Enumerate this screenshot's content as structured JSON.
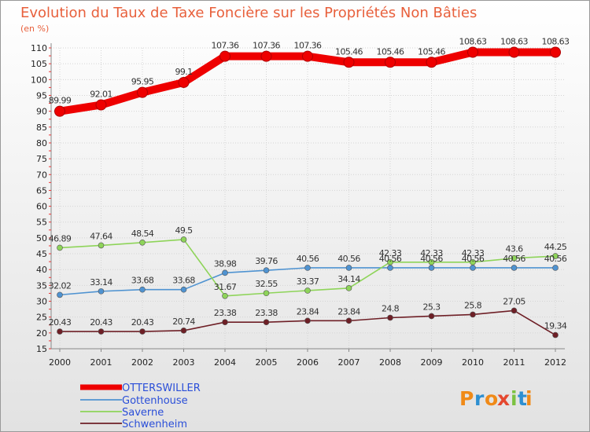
{
  "chart_data": {
    "type": "line",
    "title": "Evolution du Taux de Taxe Foncière sur les Propriétés Non Bâties",
    "subtitle": "(en %)",
    "xlabel": "",
    "ylabel": "(en %)",
    "ylim": [
      15,
      110
    ],
    "yticks": [
      15,
      20,
      25,
      30,
      35,
      40,
      45,
      50,
      55,
      60,
      65,
      70,
      75,
      80,
      85,
      90,
      95,
      100,
      105,
      110
    ],
    "grid": true,
    "legend": "bottom-left",
    "x": [
      "2000",
      "2001",
      "2002",
      "2003",
      "2004",
      "2005",
      "2006",
      "2007",
      "2008",
      "2009",
      "2010",
      "2011",
      "2012"
    ],
    "series": [
      {
        "name": "OTTERSWILLER",
        "color": "#ee0000",
        "values": [
          89.99,
          92.01,
          95.95,
          99.1,
          107.36,
          107.36,
          107.36,
          105.46,
          105.46,
          105.46,
          108.63,
          108.63,
          108.63
        ],
        "labels": [
          "89.99",
          "92.01",
          "95.95",
          "99.1",
          "107.36",
          "107.36",
          "107.36",
          "105.46",
          "105.46",
          "105.46",
          "108.63",
          "108.63",
          "108.63"
        ]
      },
      {
        "name": "Gottenhouse",
        "color": "#4f93d1",
        "values": [
          32.02,
          33.14,
          33.68,
          33.68,
          38.98,
          39.76,
          40.56,
          40.56,
          40.56,
          40.56,
          40.56,
          40.56,
          40.56
        ],
        "labels": [
          "32.02",
          "33.14",
          "33.68",
          "33.68",
          "38.98",
          "39.76",
          "40.56",
          "40.56",
          "40.56",
          "40.56",
          "40.56",
          "40.56",
          "40.56"
        ]
      },
      {
        "name": "Saverne",
        "color": "#8ed459",
        "values": [
          46.89,
          47.64,
          48.54,
          49.5,
          31.67,
          32.55,
          33.37,
          34.14,
          42.33,
          42.33,
          42.33,
          43.6,
          44.25
        ],
        "labels": [
          "46.89",
          "47.64",
          "48.54",
          "49.5",
          "31.67",
          "32.55",
          "33.37",
          "34.14",
          "42.33",
          "42.33",
          "42.33",
          "43.6",
          "44.25"
        ]
      },
      {
        "name": "Schwenheim",
        "color": "#6e1f26",
        "values": [
          20.43,
          20.43,
          20.43,
          20.74,
          23.38,
          23.38,
          23.84,
          23.84,
          24.8,
          25.3,
          25.8,
          27.05,
          19.34
        ],
        "labels": [
          "20.43",
          "20.43",
          "20.43",
          "20.74",
          "23.38",
          "23.38",
          "23.84",
          "23.84",
          "24.8",
          "25.3",
          "25.8",
          "27.05",
          "19.34"
        ]
      }
    ]
  },
  "brand": {
    "text": "Proxiti",
    "letters": [
      "P",
      "r",
      "o",
      "x",
      "i",
      "t",
      "i"
    ],
    "colors": [
      "#f08a18",
      "#2d8fd1",
      "#f08a18",
      "#e5482f",
      "#7cc242",
      "#2d8fd1",
      "#f08a18"
    ]
  }
}
